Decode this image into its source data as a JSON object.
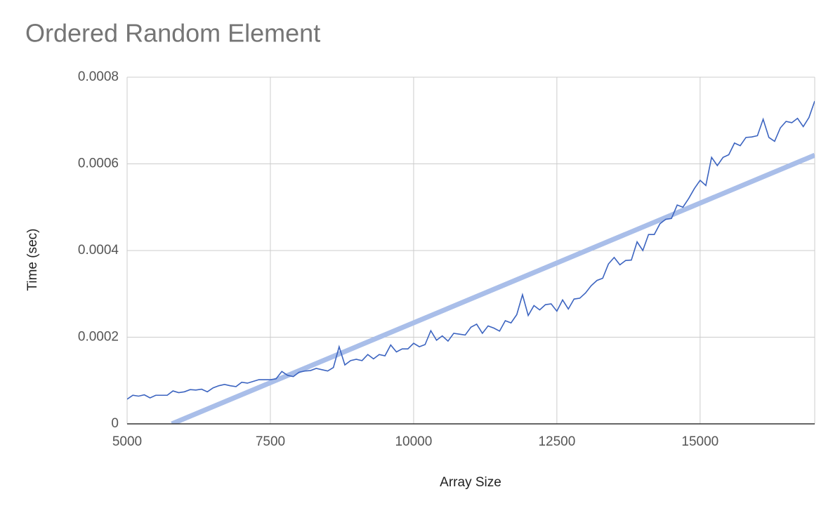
{
  "chart_data": {
    "type": "line",
    "title": "Ordered Random Element",
    "xlabel": "Array Size",
    "ylabel": "Time (sec)",
    "x": [
      5000,
      5100,
      5200,
      5300,
      5400,
      5500,
      5600,
      5700,
      5800,
      5900,
      6000,
      6100,
      6200,
      6300,
      6400,
      6500,
      6600,
      6700,
      6800,
      6900,
      7000,
      7100,
      7200,
      7300,
      7400,
      7500,
      7600,
      7700,
      7800,
      7900,
      8000,
      8100,
      8200,
      8300,
      8400,
      8500,
      8600,
      8700,
      8800,
      8900,
      9000,
      9100,
      9200,
      9300,
      9400,
      9500,
      9600,
      9700,
      9800,
      9900,
      10000,
      10100,
      10200,
      10300,
      10400,
      10500,
      10600,
      10700,
      10800,
      10900,
      11000,
      11100,
      11200,
      11300,
      11400,
      11500,
      11600,
      11700,
      11800,
      11900,
      12000,
      12100,
      12200,
      12300,
      12400,
      12500,
      12600,
      12700,
      12800,
      12900,
      13000,
      13100,
      13200,
      13300,
      13400,
      13500,
      13600,
      13700,
      13800,
      13900,
      14000,
      14100,
      14200,
      14300,
      14400,
      14500,
      14600,
      14700,
      14800,
      14900,
      15000,
      15100,
      15200,
      15300,
      15400,
      15500,
      15600,
      15700,
      15800,
      15900,
      16000,
      16100,
      16200,
      16300,
      16400,
      16500,
      16600,
      16700,
      16800,
      16900,
      17000
    ],
    "series": [
      {
        "color": "#3c64c0",
        "values": [
          5.7e-05,
          6.6e-05,
          6.4e-05,
          6.7e-05,
          6e-05,
          6.6e-05,
          6.6e-05,
          6.6e-05,
          7.6e-05,
          7.2e-05,
          7.4e-05,
          7.9e-05,
          7.8e-05,
          8e-05,
          7.4e-05,
          8.3e-05,
          8.8e-05,
          9.1e-05,
          8.8e-05,
          8.6e-05,
          9.6e-05,
          9.4e-05,
          9.8e-05,
          0.000102,
          0.000102,
          0.000102,
          0.000104,
          0.000121,
          0.000112,
          0.000109,
          0.000119,
          0.000122,
          0.000123,
          0.000128,
          0.000125,
          0.000122,
          0.00013,
          0.000178,
          0.000136,
          0.000146,
          0.000149,
          0.000146,
          0.00016,
          0.00015,
          0.00016,
          0.000157,
          0.000182,
          0.000166,
          0.000173,
          0.000173,
          0.000186,
          0.000178,
          0.000183,
          0.000215,
          0.000193,
          0.000203,
          0.000191,
          0.000209,
          0.000207,
          0.000205,
          0.000223,
          0.00023,
          0.000209,
          0.000226,
          0.000221,
          0.000214,
          0.000238,
          0.000233,
          0.000252,
          0.000298,
          0.00025,
          0.000273,
          0.000263,
          0.000275,
          0.000277,
          0.00026,
          0.000286,
          0.000265,
          0.000288,
          0.00029,
          0.000302,
          0.000319,
          0.000331,
          0.000336,
          0.000369,
          0.000384,
          0.000367,
          0.000377,
          0.000378,
          0.00042,
          0.0004,
          0.000437,
          0.000437,
          0.000462,
          0.000472,
          0.000474,
          0.000505,
          0.0005,
          0.00052,
          0.000543,
          0.000562,
          0.00055,
          0.000615,
          0.000596,
          0.000615,
          0.000621,
          0.000648,
          0.000642,
          0.000661,
          0.000662,
          0.000665,
          0.000703,
          0.000661,
          0.000652,
          0.000683,
          0.000698,
          0.000695,
          0.000705,
          0.000686,
          0.000707,
          0.000745
        ]
      }
    ],
    "trendline": {
      "color": "#a9bee9",
      "x": [
        5780,
        17000
      ],
      "values": [
        0,
        0.00062
      ]
    },
    "xlim": [
      5000,
      17000
    ],
    "ylim": [
      0,
      0.0008
    ],
    "xticks": [
      5000,
      7500,
      10000,
      12500,
      15000
    ],
    "yticks": [
      0,
      0.0002,
      0.0004,
      0.0006,
      0.0008
    ],
    "grid": true
  }
}
